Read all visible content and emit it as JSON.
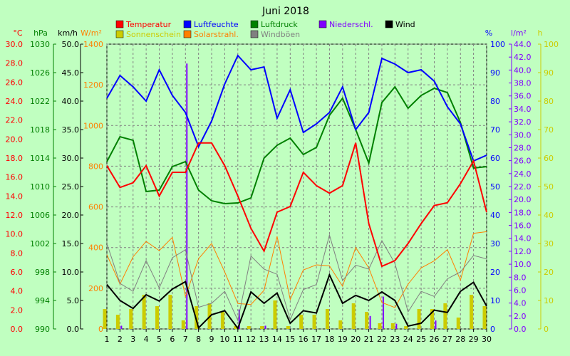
{
  "chart_data": {
    "type": "line",
    "title": "Juni 2018",
    "x": [
      1,
      2,
      3,
      4,
      5,
      6,
      7,
      8,
      9,
      10,
      11,
      12,
      13,
      14,
      15,
      16,
      17,
      18,
      19,
      20,
      21,
      22,
      23,
      24,
      25,
      26,
      27,
      28,
      29,
      30
    ],
    "grid": true,
    "legend_placement": "top",
    "legend": [
      {
        "label": "Temperatur",
        "color": "#ff0000"
      },
      {
        "label": "Luftfeuchte",
        "color": "#0000ff"
      },
      {
        "label": "Luftdruck",
        "color": "#008000"
      },
      {
        "label": "Niederschl.",
        "color": "#8000ff"
      },
      {
        "label": "Wind",
        "color": "#000000"
      },
      {
        "label": "Sonnenschein",
        "color": "#cccc00"
      },
      {
        "label": "Solarstrahl.",
        "color": "#ff8000"
      },
      {
        "label": "Windböen",
        "color": "#808080"
      }
    ],
    "axes": {
      "temp": {
        "unit": "°C",
        "color": "#ff0000",
        "ylim": [
          0,
          30
        ],
        "ticks": [
          "0.0",
          "2.0",
          "4.0",
          "6.0",
          "8.0",
          "10.0",
          "12.0",
          "14.0",
          "16.0",
          "18.0",
          "20.0",
          "22.0",
          "24.0",
          "26.0",
          "28.0",
          "30.0"
        ]
      },
      "pressure": {
        "unit": "hPa",
        "color": "#008000",
        "ylim": [
          990,
          1030
        ],
        "ticks": [
          "990",
          "994",
          "998",
          "1002",
          "1006",
          "1010",
          "1014",
          "1018",
          "1022",
          "1026",
          "1030"
        ]
      },
      "wind": {
        "unit": "km/h",
        "color": "#000000",
        "ylim": [
          0,
          50
        ],
        "ticks": [
          "0.0",
          "5.0",
          "10.0",
          "15.0",
          "20.0",
          "25.0",
          "30.0",
          "35.0",
          "40.0",
          "45.0",
          "50.0"
        ]
      },
      "solar": {
        "unit": "W/m²",
        "color": "#ff8000",
        "ylim": [
          0,
          1400
        ],
        "ticks": [
          "0",
          "200",
          "400",
          "600",
          "800",
          "1000",
          "1200",
          "1400"
        ]
      },
      "humidity": {
        "unit": "%",
        "color": "#0000ff",
        "ylim": [
          0,
          100
        ],
        "ticks": [
          "0",
          "10",
          "20",
          "30",
          "40",
          "50",
          "60",
          "70",
          "80",
          "90",
          "100"
        ]
      },
      "rain": {
        "unit": "l/m²",
        "color": "#8000ff",
        "ylim": [
          0,
          44
        ],
        "ticks": [
          "0.0",
          "2.0",
          "4.0",
          "6.0",
          "8.0",
          "10.0",
          "12.0",
          "14.0",
          "16.0",
          "18.0",
          "20.0",
          "22.0",
          "24.0",
          "26.0",
          "28.0",
          "30.0",
          "32.0",
          "34.0",
          "36.0",
          "38.0",
          "40.0",
          "42.0",
          "44.0"
        ]
      },
      "sun": {
        "unit": "h",
        "color": "#cccc00",
        "ylim": [
          0,
          100
        ],
        "ticks": [
          "0",
          "10",
          "20",
          "30",
          "40",
          "50",
          "60",
          "70",
          "80",
          "90",
          "100"
        ]
      }
    },
    "series": [
      {
        "name": "Temperatur",
        "axis": "temp",
        "kind": "line",
        "color": "#ff0000",
        "values": [
          17.2,
          14.9,
          15.4,
          17.2,
          14.0,
          16.5,
          16.5,
          19.6,
          19.6,
          17.2,
          14.0,
          10.6,
          8.2,
          12.3,
          12.9,
          16.5,
          15.1,
          14.3,
          15.1,
          19.6,
          11.1,
          6.6,
          7.2,
          9.0,
          11.1,
          13.0,
          13.3,
          15.3,
          17.7,
          12.3
        ]
      },
      {
        "name": "Luftfeuchte",
        "axis": "humidity",
        "kind": "line",
        "color": "#0000ff",
        "values": [
          81,
          89,
          85,
          80,
          91,
          82,
          76,
          64,
          73,
          86,
          96,
          91,
          92,
          74,
          84,
          69,
          72,
          76,
          85,
          70,
          76,
          95,
          93,
          90,
          91,
          87,
          78,
          72,
          59,
          61
        ]
      },
      {
        "name": "Luftdruck",
        "axis": "pressure",
        "kind": "line",
        "color": "#008000",
        "values": [
          1013.5,
          1017.0,
          1016.5,
          1009.3,
          1009.5,
          1012.8,
          1013.5,
          1009.5,
          1008.0,
          1007.6,
          1007.7,
          1008.4,
          1014.0,
          1015.8,
          1016.8,
          1014.5,
          1015.5,
          1020.0,
          1022.4,
          1018.0,
          1013.3,
          1021.8,
          1024.0,
          1021.0,
          1022.8,
          1023.8,
          1023.2,
          1019.0,
          1012.6,
          1012.8
        ]
      },
      {
        "name": "Wind",
        "axis": "wind",
        "kind": "line",
        "color": "#000000",
        "values": [
          7.8,
          5.0,
          3.6,
          6.0,
          4.9,
          7.0,
          8.3,
          0.2,
          2.5,
          3.2,
          0.1,
          6.5,
          4.5,
          6.3,
          1.0,
          3.2,
          2.8,
          9.5,
          4.5,
          5.9,
          5.0,
          6.5,
          5.0,
          0.5,
          1.0,
          3.3,
          2.9,
          6.6,
          8.2,
          4.0
        ]
      },
      {
        "name": "Windböen",
        "axis": "wind",
        "kind": "line",
        "color": "#808080",
        "values": [
          15.0,
          8.0,
          6.6,
          12.0,
          7.2,
          12.5,
          13.9,
          3.8,
          4.5,
          6.6,
          1.5,
          12.8,
          10.5,
          9.6,
          1.6,
          6.9,
          7.8,
          16.5,
          8.5,
          11.2,
          10.5,
          15.5,
          11.5,
          3.0,
          6.6,
          5.7,
          8.8,
          10.0,
          12.9,
          12.3
        ]
      },
      {
        "name": "Solarstrahl.",
        "axis": "solar",
        "kind": "line",
        "color": "#ff8000",
        "values": [
          365,
          220,
          355,
          430,
          385,
          450,
          160,
          345,
          420,
          280,
          125,
          120,
          190,
          455,
          145,
          290,
          315,
          310,
          210,
          400,
          300,
          130,
          105,
          220,
          300,
          335,
          390,
          240,
          470,
          478
        ]
      },
      {
        "name": "Niederschl.",
        "axis": "rain",
        "kind": "bar",
        "color": "#8000ff",
        "values": [
          0,
          0.5,
          0,
          0,
          0,
          0,
          41.0,
          0,
          0,
          0,
          3.0,
          0,
          0.5,
          0,
          0,
          0,
          0,
          0,
          0,
          0,
          2.0,
          5.0,
          0.8,
          0,
          0,
          1.3,
          0,
          0,
          0,
          0
        ]
      },
      {
        "name": "Sonnenschein",
        "axis": "sun",
        "kind": "bar",
        "color": "#cccc00",
        "values": [
          7,
          5,
          7,
          12,
          8,
          12,
          3,
          8,
          9,
          6,
          1,
          1,
          1,
          10,
          1,
          5,
          5,
          7,
          3,
          9,
          6,
          2,
          2,
          1,
          7,
          7,
          9,
          4,
          12,
          8
        ]
      }
    ]
  }
}
